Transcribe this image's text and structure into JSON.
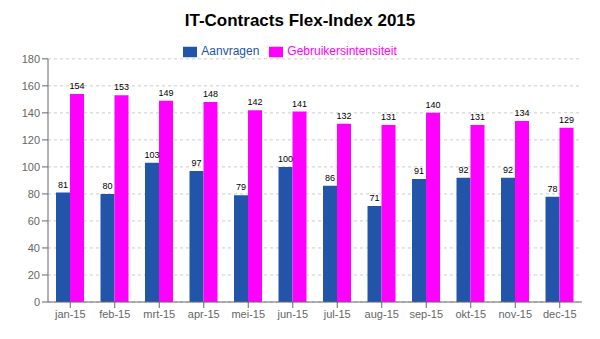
{
  "chart_data": {
    "type": "bar",
    "title": "IT-Contracts Flex-Index 2015",
    "categories": [
      "jan-15",
      "feb-15",
      "mrt-15",
      "apr-15",
      "mei-15",
      "jun-15",
      "jul-15",
      "aug-15",
      "sep-15",
      "okt-15",
      "nov-15",
      "dec-15"
    ],
    "series": [
      {
        "name": "Aanvragen",
        "color": "#2255AA",
        "values": [
          81,
          80,
          103,
          97,
          79,
          100,
          86,
          71,
          91,
          92,
          92,
          78
        ]
      },
      {
        "name": "Gebruikersintensiteit",
        "color": "#FF00FF",
        "values": [
          154,
          153,
          149,
          148,
          142,
          141,
          132,
          131,
          140,
          131,
          134,
          129
        ]
      }
    ],
    "ylim": [
      0,
      180
    ],
    "yticks": [
      0,
      20,
      40,
      60,
      80,
      100,
      120,
      140,
      160,
      180
    ],
    "grid": true,
    "legend": "top",
    "data_labels": true
  }
}
